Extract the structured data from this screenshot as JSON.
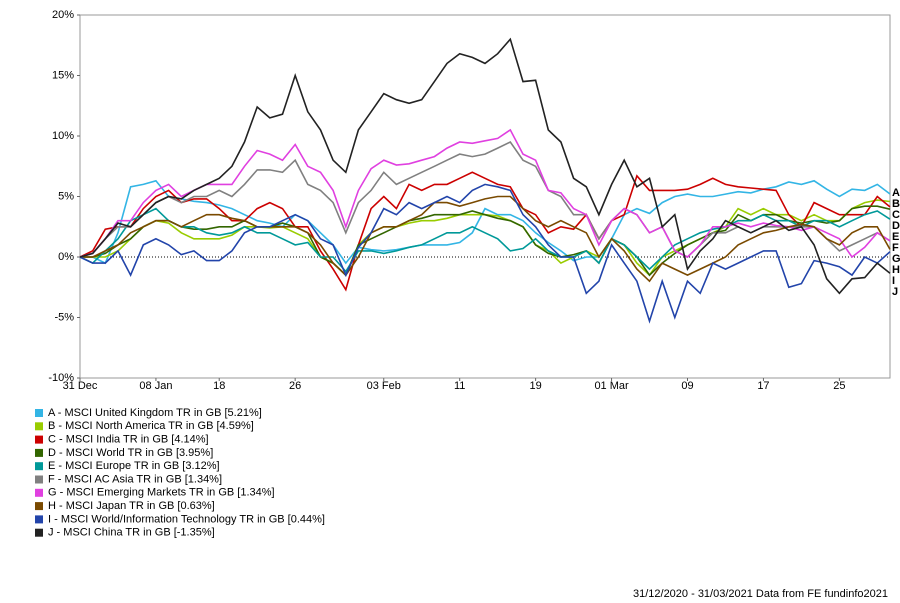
{
  "chart_data": {
    "type": "line",
    "categories": [
      "31 Dec",
      null,
      null,
      null,
      null,
      null,
      "08 Jan",
      null,
      null,
      null,
      null,
      "18",
      null,
      null,
      null,
      null,
      null,
      "26",
      null,
      null,
      null,
      null,
      null,
      null,
      "03 Feb",
      null,
      null,
      null,
      null,
      null,
      "11",
      null,
      null,
      null,
      null,
      null,
      "19",
      null,
      null,
      null,
      null,
      null,
      "01 Mar",
      null,
      null,
      null,
      null,
      null,
      "09",
      null,
      null,
      null,
      null,
      null,
      "17",
      null,
      null,
      null,
      null,
      null,
      "25",
      null,
      null,
      null,
      null
    ],
    "ylim": [
      -10,
      20
    ],
    "yticks": [
      {
        "value": -10,
        "label": "-10%"
      },
      {
        "value": -5,
        "label": "-5%"
      },
      {
        "value": 0,
        "label": "0%"
      },
      {
        "value": 5,
        "label": "5%"
      },
      {
        "value": 10,
        "label": "10%"
      },
      {
        "value": 15,
        "label": "15%"
      },
      {
        "value": 20,
        "label": "20%"
      }
    ],
    "end_labels": [
      "A",
      "B",
      "C",
      "D",
      "E",
      "F",
      "G",
      "H",
      "I",
      "J"
    ],
    "footer": "31/12/2020 - 31/03/2021 Data from FE fundinfo2021",
    "series": [
      {
        "name": "A - MSCI United Kingdom TR in GB [5.21%]",
        "color": "#33b5e5",
        "values": [
          0,
          0,
          -0.5,
          2,
          5.8,
          6,
          6.3,
          5,
          4.8,
          4.6,
          4.5,
          4.3,
          4,
          3.5,
          3,
          2.8,
          2.5,
          3.5,
          3,
          2,
          1,
          -0.5,
          0.8,
          0.6,
          0.5,
          0.6,
          0.8,
          1,
          1,
          1,
          1.2,
          2,
          4,
          3.5,
          3.5,
          3,
          2,
          1.2,
          0.5,
          -0.3,
          0,
          0,
          1.5,
          3.5,
          4,
          3.6,
          4.5,
          5,
          5.2,
          5,
          5,
          5.2,
          5.4,
          5.3,
          5.6,
          5.8,
          6.2,
          6,
          6.3,
          5.6,
          5,
          5.6,
          5.5,
          6,
          5.21
        ]
      },
      {
        "name": "B - MSCI North America TR in GB [4.59%]",
        "color": "#99cc00",
        "values": [
          0,
          0,
          0,
          0.5,
          1.5,
          2.5,
          3,
          2.8,
          2,
          1.5,
          1.5,
          1.5,
          1.8,
          2.5,
          2.5,
          2.4,
          2.5,
          2,
          1.5,
          0,
          -0.5,
          -1.5,
          1,
          2,
          2.5,
          2.5,
          2.8,
          3,
          3,
          3.2,
          3.5,
          3.5,
          3.5,
          3.4,
          3,
          2.5,
          1,
          0.5,
          -0.5,
          0,
          0.5,
          0,
          1.5,
          1,
          -0.5,
          -1.5,
          0,
          0.5,
          1,
          1.5,
          2,
          2.5,
          4,
          3.5,
          4,
          3.5,
          3.5,
          3,
          3.5,
          3,
          3,
          4,
          4.5,
          4.7,
          4.59
        ]
      },
      {
        "name": "C - MSCI India TR in GB [4.14%]",
        "color": "#cc0000",
        "values": [
          0,
          0.5,
          2.3,
          2.5,
          2.5,
          4,
          5,
          5.5,
          4.5,
          4.8,
          4.8,
          4,
          3,
          3,
          4,
          4.5,
          4,
          2.5,
          2.5,
          0.5,
          -1,
          -2.7,
          1,
          4,
          5,
          4,
          6,
          5.5,
          6,
          6,
          6.5,
          7,
          6.5,
          6,
          5.8,
          4,
          3.5,
          2,
          2.5,
          2.3,
          3.5,
          1.5,
          3,
          3.5,
          6.7,
          5.5,
          5.5,
          5.5,
          5.6,
          6,
          6.5,
          6,
          5.8,
          5.7,
          5.6,
          5.5,
          3.5,
          2.5,
          4.5,
          4,
          3.5,
          3.5,
          3.5,
          5,
          4.14
        ]
      },
      {
        "name": "D - MSCI World TR in GB [3.95%]",
        "color": "#336600",
        "values": [
          0,
          0,
          0.3,
          1,
          1.5,
          2.5,
          3,
          3,
          2.5,
          2.3,
          2.3,
          2.5,
          2.5,
          3,
          2.5,
          2.5,
          2.8,
          2.5,
          2,
          0,
          -0.5,
          -1.5,
          1,
          1.5,
          2,
          2.5,
          3,
          3.2,
          3.5,
          3.5,
          3.5,
          3.8,
          3.5,
          3.2,
          3,
          2.5,
          1,
          0.3,
          0,
          0.2,
          0.5,
          -0.5,
          1.5,
          1,
          0,
          -1.5,
          -0.5,
          0.3,
          1,
          1.5,
          2,
          2.2,
          3.5,
          3,
          3.5,
          3.5,
          3,
          2.8,
          3,
          2.8,
          3,
          4,
          4.2,
          4.2,
          3.95
        ]
      },
      {
        "name": "E - MSCI Europe TR in GB [3.12%]",
        "color": "#009999",
        "values": [
          0,
          -0.5,
          0.5,
          1.5,
          3,
          3.5,
          4,
          3,
          2.5,
          2.5,
          2,
          1.8,
          2,
          2.5,
          2,
          2,
          1.5,
          1,
          1.2,
          0,
          0,
          -1.2,
          0.5,
          0.5,
          0.3,
          0.5,
          0.8,
          1,
          1.5,
          2,
          2,
          2.5,
          2,
          1.5,
          0.5,
          0.7,
          1.5,
          0.5,
          0,
          0,
          0.5,
          -0.5,
          1.5,
          1,
          0,
          -1,
          0,
          1,
          1.5,
          2,
          2.3,
          2.5,
          3,
          3,
          3.5,
          3,
          3,
          2.5,
          3,
          3,
          2.5,
          3,
          3.5,
          3.8,
          3.12
        ]
      },
      {
        "name": "F - MSCI AC Asia TR in GB [1.34%]",
        "color": "#808080",
        "values": [
          0,
          0.3,
          1.5,
          2.5,
          2.5,
          3.5,
          4.5,
          5,
          4.5,
          5,
          5,
          5.5,
          5,
          6,
          7.2,
          7.2,
          7,
          8,
          6,
          5.5,
          4.5,
          2,
          4.5,
          5.5,
          7,
          6,
          6.5,
          7,
          7.5,
          8,
          8.5,
          8.3,
          8.5,
          9,
          9.5,
          8,
          7.5,
          5.5,
          5,
          3.5,
          3.5,
          1.5,
          3,
          4,
          3.5,
          2,
          2.5,
          0.5,
          0,
          1,
          2,
          2,
          2.5,
          2,
          2.5,
          2.5,
          2.5,
          2.5,
          2.5,
          1.5,
          0.5,
          1,
          1.5,
          2,
          1.34
        ]
      },
      {
        "name": "G - MSCI Emerging Markets TR in GB [1.34%]",
        "color": "#e040e0",
        "values": [
          0,
          0.3,
          1.5,
          3,
          3,
          4.5,
          5.5,
          6,
          5,
          5.5,
          6,
          6,
          6,
          7.5,
          8.8,
          8.5,
          8,
          9.3,
          7.5,
          7,
          5.5,
          2.5,
          5.5,
          7.3,
          8,
          7.6,
          7.7,
          8,
          8.3,
          9,
          9.5,
          9.4,
          9.6,
          9.8,
          10.5,
          8.5,
          8,
          5.5,
          5.3,
          4,
          3.5,
          1,
          3,
          4,
          3.5,
          2,
          2.5,
          0.5,
          0,
          1,
          2.5,
          2.5,
          2.8,
          2.5,
          2.8,
          2.6,
          2.5,
          2.2,
          2.5,
          2,
          1.5,
          0,
          0.8,
          2,
          1.34
        ]
      },
      {
        "name": "H - MSCI Japan TR in GB [0.63%]",
        "color": "#7a4a00",
        "values": [
          0,
          0,
          0.5,
          1,
          2,
          2.5,
          3,
          3,
          2.5,
          3,
          3.5,
          3.5,
          3.2,
          3,
          2.5,
          2.5,
          2.5,
          2.5,
          2,
          1,
          -0.5,
          -1.5,
          0,
          2,
          2.5,
          2.5,
          3,
          3.5,
          4.5,
          4.5,
          4.2,
          4.5,
          4.8,
          5,
          5,
          4,
          3,
          2.5,
          3,
          2.5,
          2,
          0,
          1.5,
          0.5,
          -1,
          -2,
          -0.5,
          -1,
          -1.5,
          -1,
          -0.5,
          0,
          1,
          1.5,
          2,
          2.2,
          2.5,
          2.7,
          2.5,
          1.5,
          1,
          2,
          2.5,
          2.5,
          0.63
        ]
      },
      {
        "name": "I - MSCI World/Information Technology TR in GB [0.44%]",
        "color": "#2244aa",
        "values": [
          0,
          -0.5,
          -0.5,
          0.5,
          -1.5,
          1,
          1.5,
          1,
          0.2,
          0.5,
          -0.3,
          -0.3,
          0.5,
          2,
          2.5,
          2.5,
          3,
          3.5,
          3,
          1.5,
          1,
          -1.5,
          0.8,
          2,
          4,
          3.5,
          4.5,
          4,
          4.5,
          5,
          4.5,
          5.5,
          6,
          5.8,
          5.5,
          3.5,
          2.5,
          1,
          0,
          0,
          -3,
          -2,
          1,
          -0.5,
          -2,
          -5.3,
          -2,
          -5,
          -2,
          -3,
          -0.5,
          -1,
          -0.5,
          0,
          0.5,
          0.5,
          -2.5,
          -2.2,
          -0.3,
          -0.5,
          -0.8,
          -1.5,
          0,
          -0.5,
          0.44
        ]
      },
      {
        "name": "J - MSCI China TR in GB [-1.35%]",
        "color": "#222222",
        "values": [
          0,
          0.3,
          1.5,
          2.8,
          2.5,
          3.5,
          4.5,
          5,
          4.8,
          5.5,
          6,
          6.5,
          7.5,
          9.5,
          12.4,
          11.5,
          11.8,
          15,
          12,
          10.5,
          8,
          7,
          10.5,
          12,
          13.5,
          13,
          12.7,
          13,
          14.5,
          16,
          16.8,
          16.5,
          16,
          16.8,
          18,
          14.5,
          14.6,
          10.5,
          9.5,
          6.5,
          5.8,
          3.5,
          6,
          8,
          5.8,
          6.5,
          2.5,
          3.5,
          -1,
          0.5,
          1.5,
          3,
          2.5,
          2,
          2.5,
          3,
          2.2,
          2.5,
          1,
          -1.8,
          -3,
          -1.8,
          -1.7,
          -0.5,
          -1.35
        ]
      }
    ]
  }
}
